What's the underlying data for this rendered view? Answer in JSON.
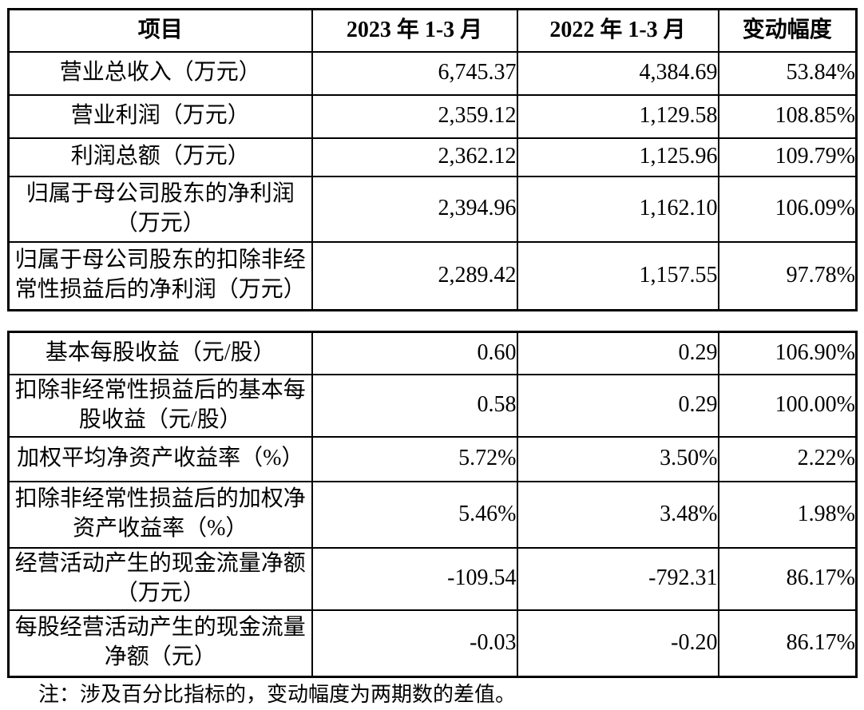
{
  "table1": {
    "headers": [
      "项目",
      "2023 年 1-3 月",
      "2022 年 1-3 月",
      "变动幅度"
    ],
    "rows": [
      {
        "label": "营业总收入（万元）",
        "v2023": "6,745.37",
        "v2022": "4,384.69",
        "change": "53.84%"
      },
      {
        "label": "营业利润（万元）",
        "v2023": "2,359.12",
        "v2022": "1,129.58",
        "change": "108.85%"
      },
      {
        "label": "利润总额（万元）",
        "v2023": "2,362.12",
        "v2022": "1,125.96",
        "change": "109.79%"
      },
      {
        "label": "归属于母公司股东的净利润\n（万元）",
        "v2023": "2,394.96",
        "v2022": "1,162.10",
        "change": "106.09%"
      },
      {
        "label": "归属于母公司股东的扣除非经\n常性损益后的净利润（万元）",
        "v2023": "2,289.42",
        "v2022": "1,157.55",
        "change": "97.78%"
      }
    ]
  },
  "table2": {
    "rows": [
      {
        "label": "基本每股收益（元/股）",
        "v2023": "0.60",
        "v2022": "0.29",
        "change": "106.90%"
      },
      {
        "label": "扣除非经常性损益后的基本每\n股收益（元/股）",
        "v2023": "0.58",
        "v2022": "0.29",
        "change": "100.00%"
      },
      {
        "label": "加权平均净资产收益率（%）",
        "v2023": "5.72%",
        "v2022": "3.50%",
        "change": "2.22%"
      },
      {
        "label": "扣除非经常性损益后的加权净\n资产收益率（%）",
        "v2023": "5.46%",
        "v2022": "3.48%",
        "change": "1.98%"
      },
      {
        "label": "经营活动产生的现金流量净额\n（万元）",
        "v2023": "-109.54",
        "v2022": "-792.31",
        "change": "86.17%"
      },
      {
        "label": "每股经营活动产生的现金流量\n净额（元）",
        "v2023": "-0.03",
        "v2022": "-0.20",
        "change": "86.17%"
      }
    ]
  },
  "note": "注：涉及百分比指标的，变动幅度为两期数的差值。",
  "colors": {
    "text": "#000000",
    "background": "#ffffff",
    "border": "#000000"
  }
}
